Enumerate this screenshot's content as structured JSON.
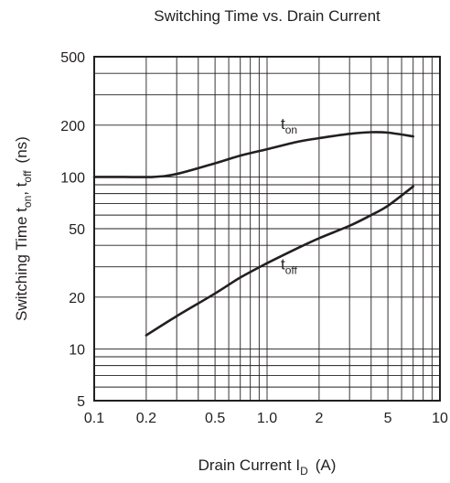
{
  "chart_data": {
    "type": "line",
    "title": "Switching Time vs. Drain Current",
    "xlabel": "Drain Current  I",
    "xlabel_sub": "D",
    "xlabel_unit": "(A)",
    "ylabel": "Switching Time  t",
    "ylabel_sub1": "on",
    "ylabel_mid": ", t",
    "ylabel_sub2": "off",
    "ylabel_unit": "(ns)",
    "x_scale": "log",
    "y_scale": "log",
    "xlim": [
      0.1,
      10
    ],
    "ylim": [
      5,
      500
    ],
    "grid": true,
    "x_ticks": [
      {
        "value": 0.1,
        "label": "0.1"
      },
      {
        "value": 0.2,
        "label": "0.2"
      },
      {
        "value": 0.5,
        "label": "0.5"
      },
      {
        "value": 1.0,
        "label": "1.0"
      },
      {
        "value": 2,
        "label": "2"
      },
      {
        "value": 5,
        "label": "5"
      },
      {
        "value": 10,
        "label": "10"
      }
    ],
    "y_ticks": [
      {
        "value": 5,
        "label": "5"
      },
      {
        "value": 10,
        "label": "10"
      },
      {
        "value": 20,
        "label": "20"
      },
      {
        "value": 50,
        "label": "50"
      },
      {
        "value": 100,
        "label": "100"
      },
      {
        "value": 200,
        "label": "200"
      },
      {
        "value": 500,
        "label": "500"
      }
    ],
    "series": [
      {
        "name": "t",
        "name_sub": "on",
        "label_at": [
          1.2,
          190
        ],
        "points": [
          [
            0.1,
            100
          ],
          [
            0.15,
            100
          ],
          [
            0.22,
            100
          ],
          [
            0.3,
            104
          ],
          [
            0.5,
            120
          ],
          [
            0.7,
            133
          ],
          [
            1.0,
            145
          ],
          [
            1.5,
            160
          ],
          [
            2.0,
            168
          ],
          [
            3.0,
            178
          ],
          [
            4.0,
            182
          ],
          [
            5.0,
            181
          ],
          [
            7.0,
            172
          ]
        ]
      },
      {
        "name": "t",
        "name_sub": "off",
        "label_at": [
          1.2,
          29
        ],
        "points": [
          [
            0.2,
            12
          ],
          [
            0.3,
            15.5
          ],
          [
            0.5,
            21
          ],
          [
            0.7,
            26
          ],
          [
            1.0,
            31.5
          ],
          [
            1.5,
            38.5
          ],
          [
            2.0,
            44
          ],
          [
            3.0,
            52
          ],
          [
            4.0,
            60
          ],
          [
            5.0,
            68
          ],
          [
            7.0,
            88
          ]
        ]
      }
    ]
  }
}
